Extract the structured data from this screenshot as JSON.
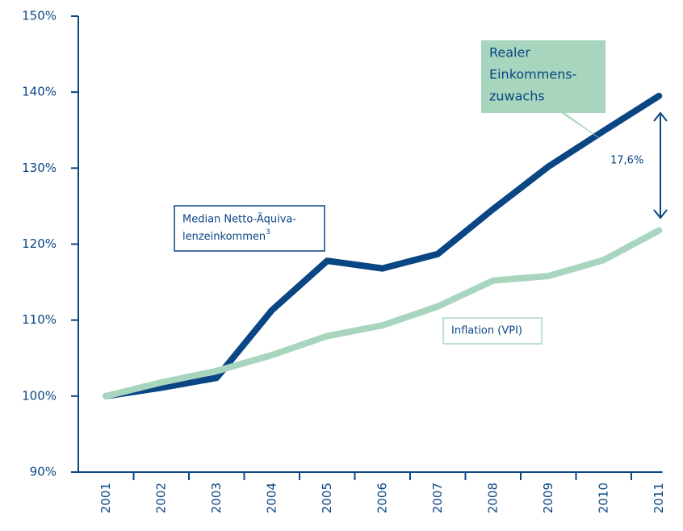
{
  "chart_data": {
    "type": "line",
    "categories": [
      "2001",
      "2002",
      "2003",
      "2004",
      "2005",
      "2006",
      "2007",
      "2008",
      "2009",
      "2010",
      "2011"
    ],
    "series": [
      {
        "name": [
          "Median Netto-Äquiva-",
          "lenzeinkommen"
        ],
        "footnote": "3",
        "color": "#0a4584",
        "values": [
          100,
          101.1,
          102.4,
          111.3,
          117.8,
          116.8,
          118.7,
          124.6,
          130.2,
          134.9,
          139.5
        ]
      },
      {
        "name": [
          "Inflation (VPI)"
        ],
        "color": "#a8d5bd",
        "values": [
          100,
          101.8,
          103.3,
          105.4,
          107.9,
          109.3,
          111.8,
          115.2,
          115.8,
          117.9,
          121.8
        ]
      }
    ],
    "ylim": [
      90,
      150
    ],
    "yticks": [
      {
        "value": 90,
        "label": "90%"
      },
      {
        "value": 100,
        "label": "100%"
      },
      {
        "value": 110,
        "label": "110%"
      },
      {
        "value": 120,
        "label": "120%"
      },
      {
        "value": 130,
        "label": "130%"
      },
      {
        "value": 140,
        "label": "140%"
      },
      {
        "value": 150,
        "label": "150%"
      }
    ],
    "callout": [
      "Realer",
      "Einkommens-",
      "zuwachs"
    ],
    "difference_label": "17,6%"
  }
}
